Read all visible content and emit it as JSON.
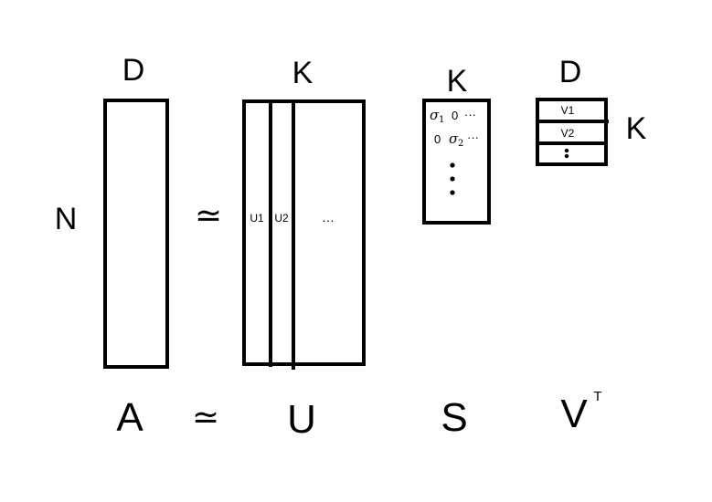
{
  "matrix_a": {
    "row_dim_label": "N",
    "col_dim_label": "D",
    "bottom_label": "A"
  },
  "approx_symbol": "≃",
  "matrix_u": {
    "col_dim_label": "K",
    "column_labels": [
      "U1",
      "U2"
    ],
    "ellipsis": "…",
    "bottom_label": "U"
  },
  "matrix_s": {
    "dim_label": "K",
    "row1": {
      "sigma": "σ",
      "sub": "1",
      "zero": "0",
      "dots": "···"
    },
    "row2": {
      "zero": "0",
      "sigma": "σ",
      "sub": "2",
      "dots": "···"
    },
    "bottom_label": "S"
  },
  "matrix_v": {
    "col_dim_label": "D",
    "row_dim_label": "K",
    "row_labels": [
      "V1",
      "V2"
    ],
    "bottom_label": "V",
    "superscript": "T"
  },
  "stroke_color": "#000000"
}
